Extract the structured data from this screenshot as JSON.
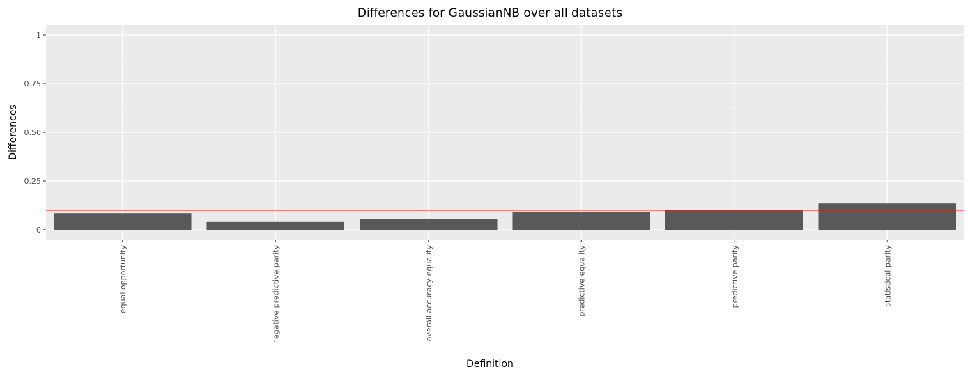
{
  "chart_data": {
    "type": "bar",
    "title": "Differences for GaussianNB over all datasets",
    "xlabel": "Definition",
    "ylabel": "Differences",
    "categories": [
      "equal opportunity",
      "negative predictive parity",
      "overall accuracy equality",
      "predictive equality",
      "predictive parity",
      "statistical parity"
    ],
    "values": [
      0.085,
      0.04,
      0.055,
      0.09,
      0.1,
      0.135
    ],
    "ylim": [
      -0.05,
      1.05
    ],
    "y_ticks": [
      0,
      0.25,
      0.5,
      0.75,
      1
    ],
    "y_tick_labels": [
      "0",
      "0.25",
      "0.50",
      "0.75",
      "1"
    ],
    "reference_line": {
      "y": 0.1,
      "color": "#e41a1c"
    },
    "grid": true,
    "colors": {
      "panel_background": "#ebebeb",
      "grid_major": "#ffffff",
      "grid_minor": "#f5f5f5",
      "bar_fill": "#595959",
      "tick_mark": "#333333"
    }
  }
}
